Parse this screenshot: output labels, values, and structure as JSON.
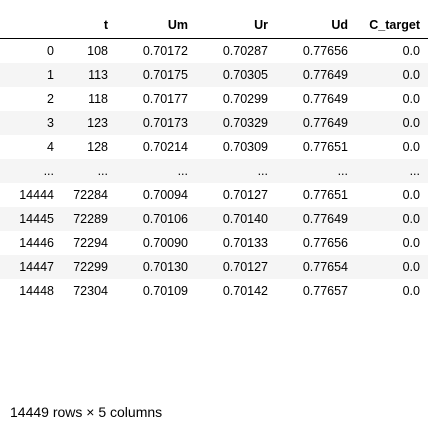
{
  "dataframe": {
    "columns": [
      "",
      "t",
      "Um",
      "Ur",
      "Ud",
      "C_target"
    ],
    "head_rows": [
      {
        "idx": "0",
        "t": "108",
        "Um": "0.70172",
        "Ur": "0.70287",
        "Ud": "0.77656",
        "C_target": "0.0"
      },
      {
        "idx": "1",
        "t": "113",
        "Um": "0.70175",
        "Ur": "0.70305",
        "Ud": "0.77649",
        "C_target": "0.0"
      },
      {
        "idx": "2",
        "t": "118",
        "Um": "0.70177",
        "Ur": "0.70299",
        "Ud": "0.77649",
        "C_target": "0.0"
      },
      {
        "idx": "3",
        "t": "123",
        "Um": "0.70173",
        "Ur": "0.70329",
        "Ud": "0.77649",
        "C_target": "0.0"
      },
      {
        "idx": "4",
        "t": "128",
        "Um": "0.70214",
        "Ur": "0.70309",
        "Ud": "0.77651",
        "C_target": "0.0"
      }
    ],
    "tail_rows": [
      {
        "idx": "14444",
        "t": "72284",
        "Um": "0.70094",
        "Ur": "0.70127",
        "Ud": "0.77651",
        "C_target": "0.0"
      },
      {
        "idx": "14445",
        "t": "72289",
        "Um": "0.70106",
        "Ur": "0.70140",
        "Ud": "0.77649",
        "C_target": "0.0"
      },
      {
        "idx": "14446",
        "t": "72294",
        "Um": "0.70090",
        "Ur": "0.70133",
        "Ud": "0.77656",
        "C_target": "0.0"
      },
      {
        "idx": "14447",
        "t": "72299",
        "Um": "0.70130",
        "Ur": "0.70127",
        "Ud": "0.77654",
        "C_target": "0.0"
      },
      {
        "idx": "14448",
        "t": "72304",
        "Um": "0.70109",
        "Ur": "0.70142",
        "Ud": "0.77657",
        "C_target": "0.0"
      }
    ],
    "ellipsis": "...",
    "shape_text": "14449 rows × 5 columns"
  }
}
